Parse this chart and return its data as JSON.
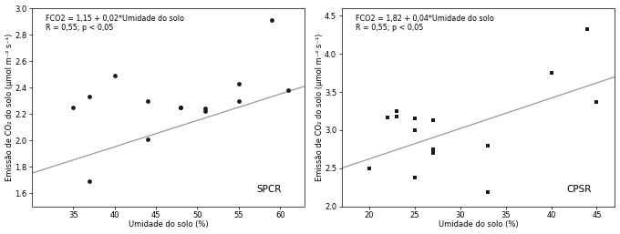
{
  "panel1": {
    "scatter_x": [
      35,
      37,
      37,
      40,
      44,
      44,
      48,
      48,
      51,
      51,
      55,
      55,
      59,
      61
    ],
    "scatter_y": [
      2.25,
      2.33,
      1.69,
      2.49,
      2.3,
      2.01,
      2.25,
      2.25,
      2.24,
      2.22,
      2.43,
      2.3,
      2.91,
      2.38
    ],
    "line_eq": "FCO2 = 1,15 + 0,02*Umidade do solo",
    "line_stats": "R = 0,55; p < 0,05",
    "intercept": 1.15,
    "slope": 0.02,
    "xlabel": "Umidade do solo (%)",
    "ylabel": "Emissão de CO₂ do solo (μmol m⁻² s⁻¹)",
    "label": "SPCR",
    "xlim": [
      30,
      63
    ],
    "ylim": [
      1.5,
      3.0
    ],
    "xticks": [
      35,
      40,
      45,
      50,
      55,
      60
    ],
    "yticks": [
      1.6,
      1.8,
      2.0,
      2.2,
      2.4,
      2.6,
      2.8,
      3.0
    ]
  },
  "panel2": {
    "scatter_x": [
      20,
      22,
      23,
      23,
      25,
      25,
      25,
      27,
      27,
      27,
      27,
      33,
      33,
      40,
      44,
      45
    ],
    "scatter_y": [
      2.5,
      3.16,
      3.18,
      3.25,
      2.38,
      3.0,
      3.15,
      2.7,
      2.7,
      2.75,
      3.13,
      2.8,
      2.19,
      3.75,
      4.33,
      3.37
    ],
    "line_eq": "FCO2 = 1,82 + 0,04*Umidade do solo",
    "line_stats": "R = 0,55; p < 0,05",
    "intercept": 1.82,
    "slope": 0.04,
    "xlabel": "Umidade do solo (%)",
    "ylabel": "Emissão de CO₂ do solo (μmol m⁻² s⁻¹)",
    "label": "CPSR",
    "xlim": [
      17,
      47
    ],
    "ylim": [
      2.0,
      4.6
    ],
    "xticks": [
      20,
      25,
      30,
      35,
      40,
      45
    ],
    "yticks": [
      2.0,
      2.5,
      3.0,
      3.5,
      4.0,
      4.5
    ]
  },
  "marker_color": "#1a1a1a",
  "line_color": "#999999",
  "bg_color": "#ffffff",
  "font_size_tick": 6,
  "font_size_label": 6,
  "font_size_annot": 5.8,
  "font_size_tag": 7.5
}
